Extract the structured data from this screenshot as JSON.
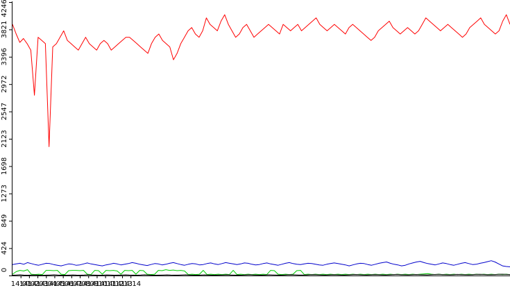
{
  "chart_data": {
    "type": "line",
    "title": "",
    "xlabel": "",
    "ylabel": "",
    "ylim": [
      0,
      4246
    ],
    "yticks": [
      "0",
      "424",
      "849",
      "1273",
      "1698",
      "2123",
      "2547",
      "2972",
      "3396",
      "3821",
      "4246"
    ],
    "xlim": [
      14.0,
      14.98
    ],
    "xticks": [
      {
        "value": 14.0167,
        "label": "14:01"
      },
      {
        "value": 14.0333,
        "label": "14:02"
      },
      {
        "value": 14.05,
        "label": "14:03"
      },
      {
        "value": 14.0667,
        "label": "14:04"
      },
      {
        "value": 14.0833,
        "label": "14:05"
      },
      {
        "value": 14.1,
        "label": "14:06"
      },
      {
        "value": 14.1167,
        "label": "14:07"
      },
      {
        "value": 14.1333,
        "label": "14:08"
      },
      {
        "value": 14.15,
        "label": "14:09"
      },
      {
        "value": 14.1667,
        "label": "14:10"
      },
      {
        "value": 14.1833,
        "label": "14:11"
      },
      {
        "value": 14.2,
        "label": "14:12"
      },
      {
        "value": 14.2167,
        "label": "14:13"
      },
      {
        "value": 14.2333,
        "label": "14:14"
      }
    ],
    "time_range": [
      "14:00:15",
      "14:14:55"
    ],
    "grid": false,
    "legend": "none",
    "series": [
      {
        "color": "#ff0000",
        "values": [
          3900,
          3750,
          3620,
          3680,
          3600,
          3500,
          2800,
          3700,
          3650,
          3600,
          2000,
          3550,
          3600,
          3700,
          3800,
          3650,
          3600,
          3550,
          3500,
          3600,
          3700,
          3600,
          3550,
          3500,
          3600,
          3650,
          3600,
          3500,
          3550,
          3600,
          3650,
          3700,
          3700,
          3650,
          3600,
          3550,
          3500,
          3450,
          3600,
          3700,
          3750,
          3650,
          3600,
          3550,
          3350,
          3450,
          3600,
          3700,
          3800,
          3850,
          3750,
          3700,
          3800,
          4000,
          3900,
          3850,
          3800,
          3950,
          4050,
          3900,
          3800,
          3700,
          3750,
          3850,
          3900,
          3800,
          3700,
          3750,
          3800,
          3850,
          3900,
          3850,
          3800,
          3750,
          3900,
          3850,
          3800,
          3850,
          3900,
          3800,
          3850,
          3900,
          3950,
          4000,
          3900,
          3850,
          3800,
          3850,
          3900,
          3850,
          3800,
          3750,
          3850,
          3900,
          3850,
          3800,
          3750,
          3700,
          3650,
          3700,
          3800,
          3850,
          3900,
          3950,
          3850,
          3800,
          3750,
          3800,
          3850,
          3800,
          3750,
          3800,
          3900,
          4000,
          3950,
          3900,
          3850,
          3800,
          3850,
          3900,
          3850,
          3800,
          3750,
          3700,
          3750,
          3850,
          3900,
          3950,
          4000,
          3900,
          3850,
          3800,
          3750,
          3800,
          3950,
          4050,
          3900
        ]
      },
      {
        "color": "#0000cc",
        "values": [
          170,
          180,
          190,
          175,
          200,
          185,
          170,
          160,
          175,
          190,
          185,
          170,
          160,
          150,
          165,
          180,
          175,
          160,
          165,
          180,
          195,
          180,
          170,
          160,
          150,
          165,
          175,
          190,
          180,
          165,
          175,
          185,
          200,
          190,
          175,
          165,
          155,
          170,
          185,
          180,
          165,
          175,
          190,
          200,
          185,
          170,
          160,
          175,
          185,
          180,
          165,
          170,
          185,
          195,
          180,
          170,
          185,
          200,
          190,
          180,
          170,
          180,
          195,
          190,
          175,
          165,
          170,
          185,
          195,
          180,
          170,
          160,
          175,
          190,
          200,
          185,
          175,
          170,
          180,
          190,
          185,
          175,
          165,
          160,
          175,
          185,
          195,
          185,
          175,
          165,
          150,
          165,
          180,
          190,
          185,
          170,
          160,
          175,
          190,
          200,
          210,
          190,
          175,
          165,
          150,
          160,
          180,
          195,
          210,
          220,
          200,
          185,
          175,
          165,
          180,
          195,
          185,
          170,
          160,
          175,
          190,
          200,
          185,
          170,
          175,
          190,
          200,
          215,
          230,
          210,
          180,
          150,
          140,
          135
        ]
      },
      {
        "color": "#00cc00",
        "values": [
          20,
          60,
          80,
          70,
          90,
          20,
          15,
          20,
          15,
          80,
          80,
          75,
          80,
          20,
          15,
          75,
          80,
          80,
          75,
          80,
          20,
          15,
          80,
          75,
          20,
          80,
          75,
          80,
          70,
          20,
          80,
          75,
          80,
          20,
          80,
          75,
          20,
          15,
          20,
          80,
          75,
          90,
          80,
          85,
          75,
          80,
          70,
          15,
          20,
          15,
          20,
          80,
          15,
          20,
          15,
          20,
          15,
          20,
          15,
          80,
          15,
          20,
          15,
          20,
          15,
          20,
          15,
          20,
          15,
          80,
          75,
          20,
          15,
          20,
          15,
          20,
          75,
          80,
          15,
          20,
          15,
          20,
          15,
          20,
          15,
          20,
          15,
          20,
          15,
          20,
          15,
          20,
          15,
          20,
          15,
          20,
          15,
          20,
          15,
          20,
          15,
          20,
          15,
          20,
          15,
          20,
          15,
          20,
          15,
          20,
          25,
          30,
          20,
          15,
          20,
          15,
          20,
          15,
          20,
          15,
          20,
          15,
          20,
          15,
          20,
          15,
          20,
          15,
          20,
          15,
          20,
          15,
          20,
          15
        ]
      },
      {
        "color": "#000000",
        "values": [
          5,
          8,
          12,
          6,
          4,
          8,
          10,
          5,
          3,
          6,
          9,
          12,
          8,
          5,
          4,
          7,
          10,
          6,
          5,
          8,
          12,
          9,
          6,
          4,
          7,
          10,
          8,
          5,
          6,
          9,
          11,
          8,
          6,
          5,
          8,
          12,
          10,
          7,
          5,
          6,
          9,
          11,
          8,
          6,
          7,
          10,
          12,
          9,
          6,
          5,
          8,
          11,
          9,
          7,
          6,
          8,
          10,
          12,
          9,
          7,
          6,
          8,
          11,
          13,
          10,
          8,
          6,
          9,
          12,
          10,
          8,
          7,
          9,
          12,
          14,
          11,
          9,
          8,
          10,
          13,
          15,
          12,
          10,
          9,
          11,
          14,
          12,
          10,
          9,
          11,
          14,
          16,
          13,
          11,
          10,
          12,
          15,
          13,
          11,
          10,
          12,
          15,
          17,
          14,
          12,
          11,
          13,
          16,
          14,
          12,
          11,
          13,
          16,
          18,
          15,
          13,
          12,
          14,
          17,
          15,
          13,
          12,
          14,
          17,
          19,
          16,
          14,
          13,
          15,
          18,
          20,
          17,
          15
        ]
      }
    ]
  }
}
